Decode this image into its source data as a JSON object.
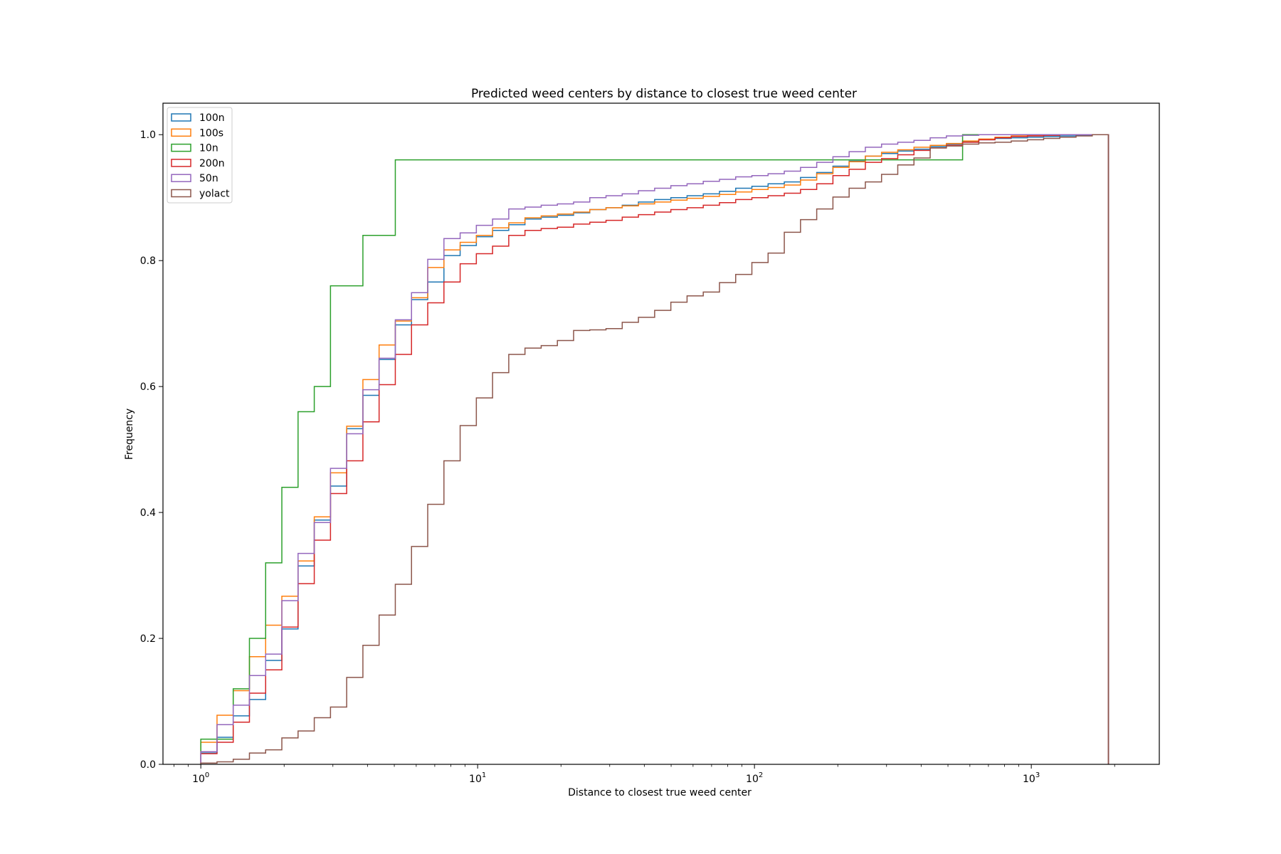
{
  "chart_data": {
    "type": "line",
    "style": "cumulative step histogram",
    "title": "Predicted weed centers by distance to closest true weed center",
    "xlabel": "Distance to closest true weed center",
    "ylabel": "Frequency",
    "x_scale": "log",
    "xlim": [
      0.73,
      2900
    ],
    "ylim": [
      0,
      1.05
    ],
    "x_ticks": [
      {
        "value": 1,
        "base": "10",
        "exp": "0"
      },
      {
        "value": 10,
        "base": "10",
        "exp": "1"
      },
      {
        "value": 100,
        "base": "10",
        "exp": "2"
      },
      {
        "value": 1000,
        "base": "10",
        "exp": "3"
      }
    ],
    "y_ticks": [
      "0.0",
      "0.2",
      "0.4",
      "0.6",
      "0.8",
      "1.0"
    ],
    "bin_edge_start": 1,
    "bin_edge_end": 1900,
    "grid": false,
    "legend_position": "top-left",
    "series": [
      {
        "name": "100n",
        "color": "#1f77b4",
        "values": [
          0.018,
          0.043,
          0.077,
          0.103,
          0.165,
          0.215,
          0.315,
          0.388,
          0.442,
          0.533,
          0.586,
          0.643,
          0.698,
          0.738,
          0.766,
          0.808,
          0.824,
          0.838,
          0.848,
          0.857,
          0.866,
          0.869,
          0.872,
          0.876,
          0.881,
          0.884,
          0.888,
          0.893,
          0.897,
          0.9,
          0.903,
          0.906,
          0.91,
          0.915,
          0.918,
          0.922,
          0.925,
          0.932,
          0.94,
          0.95,
          0.958,
          0.966,
          0.97,
          0.974,
          0.977,
          0.981,
          0.985,
          0.989,
          0.992,
          0.994,
          0.995,
          0.996,
          0.997,
          0.998,
          0.999,
          1.0
        ]
      },
      {
        "name": "100s",
        "color": "#ff7f0e",
        "values": [
          0.035,
          0.078,
          0.117,
          0.171,
          0.221,
          0.267,
          0.323,
          0.393,
          0.463,
          0.537,
          0.611,
          0.666,
          0.704,
          0.741,
          0.789,
          0.817,
          0.829,
          0.84,
          0.852,
          0.86,
          0.868,
          0.871,
          0.874,
          0.877,
          0.881,
          0.884,
          0.887,
          0.89,
          0.893,
          0.896,
          0.899,
          0.902,
          0.905,
          0.909,
          0.913,
          0.916,
          0.92,
          0.928,
          0.938,
          0.948,
          0.957,
          0.966,
          0.972,
          0.976,
          0.98,
          0.983,
          0.986,
          0.99,
          0.993,
          0.996,
          0.998,
          0.999,
          0.999,
          1.0,
          1.0,
          1.0
        ]
      },
      {
        "name": "10n",
        "color": "#2ca02c",
        "values": [
          0.04,
          0.04,
          0.12,
          0.2,
          0.32,
          0.44,
          0.56,
          0.6,
          0.76,
          0.76,
          0.84,
          0.84,
          0.96,
          0.96,
          0.96,
          0.96,
          0.96,
          0.96,
          0.96,
          0.96,
          0.96,
          0.96,
          0.96,
          0.96,
          0.96,
          0.96,
          0.96,
          0.96,
          0.96,
          0.96,
          0.96,
          0.96,
          0.96,
          0.96,
          0.96,
          0.96,
          0.96,
          0.96,
          0.96,
          0.96,
          0.96,
          0.96,
          0.96,
          0.96,
          0.96,
          0.96,
          0.96,
          1.0,
          1.0,
          1.0,
          1.0,
          1.0,
          1.0,
          1.0,
          1.0,
          1.0
        ]
      },
      {
        "name": "200n",
        "color": "#d62728",
        "values": [
          0.017,
          0.035,
          0.067,
          0.113,
          0.15,
          0.218,
          0.287,
          0.356,
          0.43,
          0.482,
          0.544,
          0.603,
          0.651,
          0.698,
          0.733,
          0.766,
          0.795,
          0.811,
          0.823,
          0.84,
          0.848,
          0.851,
          0.853,
          0.858,
          0.861,
          0.864,
          0.869,
          0.873,
          0.877,
          0.881,
          0.884,
          0.888,
          0.892,
          0.897,
          0.9,
          0.903,
          0.907,
          0.913,
          0.922,
          0.935,
          0.945,
          0.956,
          0.962,
          0.968,
          0.975,
          0.979,
          0.983,
          0.988,
          0.992,
          0.995,
          0.997,
          0.998,
          0.999,
          1.0,
          1.0,
          1.0
        ]
      },
      {
        "name": "50n",
        "color": "#9467bd",
        "values": [
          0.02,
          0.063,
          0.094,
          0.141,
          0.175,
          0.26,
          0.335,
          0.384,
          0.47,
          0.525,
          0.595,
          0.645,
          0.706,
          0.749,
          0.802,
          0.835,
          0.844,
          0.856,
          0.866,
          0.882,
          0.885,
          0.888,
          0.89,
          0.893,
          0.9,
          0.903,
          0.906,
          0.911,
          0.915,
          0.919,
          0.922,
          0.926,
          0.929,
          0.933,
          0.935,
          0.938,
          0.942,
          0.948,
          0.956,
          0.965,
          0.973,
          0.98,
          0.985,
          0.988,
          0.991,
          0.995,
          0.998,
          0.999,
          1.0,
          1.0,
          1.0,
          1.0,
          1.0,
          1.0,
          1.0,
          1.0
        ]
      },
      {
        "name": "yolact",
        "color": "#8c564b",
        "values": [
          0.002,
          0.004,
          0.008,
          0.018,
          0.023,
          0.042,
          0.053,
          0.074,
          0.091,
          0.138,
          0.189,
          0.237,
          0.286,
          0.346,
          0.413,
          0.482,
          0.538,
          0.582,
          0.622,
          0.651,
          0.661,
          0.665,
          0.673,
          0.689,
          0.69,
          0.692,
          0.702,
          0.71,
          0.721,
          0.734,
          0.744,
          0.75,
          0.765,
          0.778,
          0.797,
          0.812,
          0.845,
          0.865,
          0.882,
          0.901,
          0.915,
          0.925,
          0.937,
          0.952,
          0.963,
          0.979,
          0.982,
          0.985,
          0.987,
          0.988,
          0.99,
          0.992,
          0.994,
          0.996,
          0.998,
          1.0
        ]
      }
    ]
  }
}
